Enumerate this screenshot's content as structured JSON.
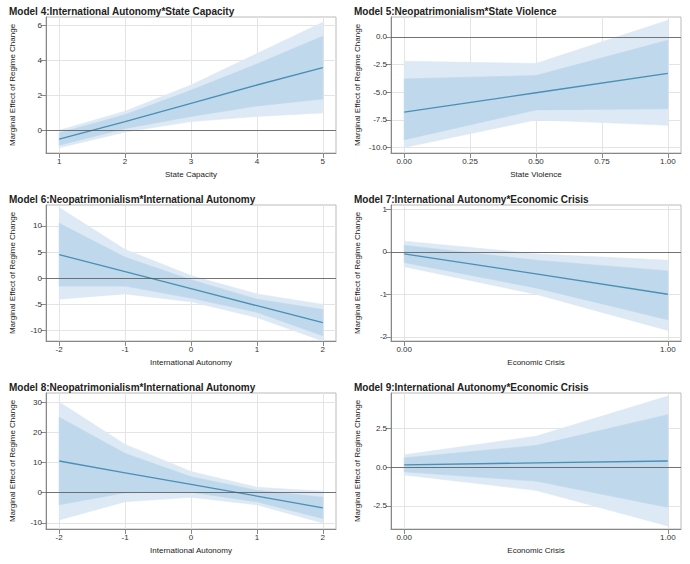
{
  "chart_data": [
    {
      "type": "line",
      "title": "Model 4:International Autonomy*State Capacity",
      "x_label": "State Capacity",
      "y_label": "Marginal Effect of Regime Change",
      "x": [
        1,
        2,
        3,
        4,
        5
      ],
      "values": [
        -0.5,
        0.5,
        1.55,
        2.6,
        3.6
      ],
      "color": "#4a8fb5",
      "interval_wide": {
        "lower": [
          -1.0,
          -0.1,
          0.5,
          0.8,
          1.0
        ],
        "upper": [
          0.0,
          1.1,
          2.6,
          4.4,
          6.2
        ],
        "color": "#dde9f4"
      },
      "interval_narrow": {
        "lower": [
          -0.85,
          0.1,
          0.8,
          1.4,
          1.8
        ],
        "upper": [
          -0.15,
          0.9,
          2.3,
          3.8,
          5.4
        ],
        "color": "#bfd8eb"
      },
      "hline": 0,
      "xlim": [
        0.8,
        5.2
      ],
      "xticks": [
        1,
        2,
        3,
        4,
        5
      ],
      "ylim": [
        -1.3,
        6.5
      ],
      "yticks": [
        0,
        2,
        4,
        6
      ],
      "grid": true
    },
    {
      "type": "line",
      "title": "Model 5:Neopatrimonialism*State Violence",
      "x_label": "State Violence",
      "y_label": "Marginal Effect of Regime Change",
      "x": [
        0,
        0.5,
        1
      ],
      "values": [
        -6.8,
        -5.05,
        -3.3
      ],
      "color": "#4a8fb5",
      "interval_wide": {
        "lower": [
          -10.0,
          -7.5,
          -8.0
        ],
        "upper": [
          -2.2,
          -2.4,
          1.5
        ],
        "color": "#dde9f4"
      },
      "interval_narrow": {
        "lower": [
          -9.3,
          -6.6,
          -6.5
        ],
        "upper": [
          -3.8,
          -3.5,
          -0.3
        ],
        "color": "#bfd8eb"
      },
      "hline": 0,
      "xlim": [
        -0.05,
        1.05
      ],
      "xticks": [
        {
          "value": 0,
          "label": "0.00"
        },
        {
          "value": 0.25,
          "label": "0.25"
        },
        {
          "value": 0.5,
          "label": "0.50"
        },
        {
          "value": 0.75,
          "label": "0.75"
        },
        {
          "value": 1,
          "label": "1.00"
        }
      ],
      "ylim": [
        -10.5,
        1.8
      ],
      "yticks": [
        {
          "value": -10,
          "label": "-10.0"
        },
        -7.5,
        {
          "value": -5,
          "label": "-5.0"
        },
        -2.5,
        {
          "value": 0,
          "label": "0.0"
        }
      ],
      "grid": true
    },
    {
      "type": "line",
      "title": "Model 6:Neopatrimonialism*International Autonomy",
      "x_label": "International Autonomy",
      "y_label": "Marginal Effect of Regime Change",
      "x": [
        -2,
        -1,
        0,
        1,
        2
      ],
      "values": [
        4.5,
        1.25,
        -2,
        -5.25,
        -8.5
      ],
      "color": "#4a8fb5",
      "interval_wide": {
        "lower": [
          -4,
          -3,
          -4.5,
          -7.5,
          -12
        ],
        "upper": [
          13.5,
          5.5,
          0.5,
          -3,
          -5
        ],
        "color": "#dde9f4"
      },
      "interval_narrow": {
        "lower": [
          -1.5,
          -1.5,
          -3.8,
          -6.5,
          -11
        ],
        "upper": [
          10.5,
          4,
          -0.3,
          -4,
          -6
        ],
        "color": "#bfd8eb"
      },
      "hline": 0,
      "xlim": [
        -2.2,
        2.2
      ],
      "xticks": [
        -2,
        -1,
        0,
        1,
        2
      ],
      "ylim": [
        -12,
        14
      ],
      "yticks": [
        -10,
        -5,
        0,
        5,
        10
      ],
      "grid": true
    },
    {
      "type": "line",
      "title": "Model 7:International Autonomy*Economic Crisis",
      "x_label": "Economic Crisis",
      "y_label": "Marginal Effect of Regime Change",
      "x": [
        0,
        0.5,
        1
      ],
      "values": [
        -0.05,
        -0.52,
        -1.0
      ],
      "color": "#4a8fb5",
      "interval_wide": {
        "lower": [
          -0.35,
          -1.0,
          -1.85
        ],
        "upper": [
          0.25,
          -0.05,
          -0.2
        ],
        "color": "#dde9f4"
      },
      "interval_narrow": {
        "lower": [
          -0.25,
          -0.85,
          -1.6
        ],
        "upper": [
          0.15,
          -0.2,
          -0.45
        ],
        "color": "#bfd8eb"
      },
      "hline": 0,
      "xlim": [
        -0.05,
        1.05
      ],
      "xticks": [
        {
          "value": 0,
          "label": "0.00"
        },
        {
          "value": 1,
          "label": "1.00"
        }
      ],
      "ylim": [
        -2.1,
        1.1
      ],
      "yticks": [
        -2,
        -1,
        0,
        1
      ],
      "grid": true
    },
    {
      "type": "line",
      "title": "Model 8:Neopatrimonialism*International Autonomy",
      "x_label": "International Autonomy",
      "y_label": "Marginal Effect of Regime Change",
      "x": [
        -2,
        -1,
        0,
        1,
        2
      ],
      "values": [
        10.5,
        6.6,
        2.75,
        -1.1,
        -5
      ],
      "color": "#4a8fb5",
      "interval_wide": {
        "lower": [
          -9,
          -3,
          -1.5,
          -4,
          -10
        ],
        "upper": [
          30,
          16,
          7,
          1.8,
          0.5
        ],
        "color": "#dde9f4"
      },
      "interval_narrow": {
        "lower": [
          -4,
          0,
          0.2,
          -3,
          -8.5
        ],
        "upper": [
          25,
          13,
          5.3,
          0.8,
          -1.5
        ],
        "color": "#bfd8eb"
      },
      "hline": 0,
      "xlim": [
        -2.2,
        2.2
      ],
      "xticks": [
        -2,
        -1,
        0,
        1,
        2
      ],
      "ylim": [
        -12,
        33
      ],
      "yticks": [
        -10,
        0,
        10,
        20,
        30
      ],
      "grid": true
    },
    {
      "type": "line",
      "title": "Model 9:International Autonomy*Economic Crisis",
      "x_label": "Economic Crisis",
      "y_label": "Marginal Effect of Regime Change",
      "x": [
        0,
        0.5,
        1
      ],
      "values": [
        0.15,
        0.28,
        0.4
      ],
      "color": "#4a8fb5",
      "interval_wide": {
        "lower": [
          -0.5,
          -1.5,
          -3.8
        ],
        "upper": [
          0.8,
          2.0,
          4.6
        ],
        "color": "#dde9f4"
      },
      "interval_narrow": {
        "lower": [
          -0.3,
          -0.9,
          -2.6
        ],
        "upper": [
          0.6,
          1.4,
          3.4
        ],
        "color": "#bfd8eb"
      },
      "hline": 0,
      "xlim": [
        -0.05,
        1.05
      ],
      "xticks": [
        {
          "value": 0,
          "label": "0.00"
        },
        {
          "value": 1,
          "label": "1.00"
        }
      ],
      "ylim": [
        -4,
        4.8
      ],
      "yticks": [
        -2.5,
        {
          "value": 0,
          "label": "0.0"
        },
        2.5
      ],
      "grid": true
    }
  ]
}
